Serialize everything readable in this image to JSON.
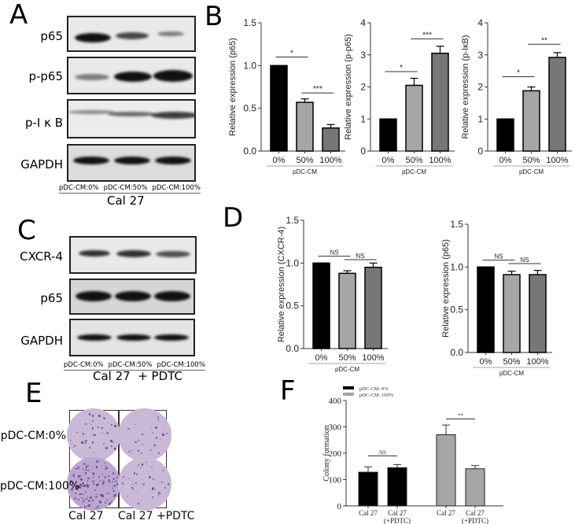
{
  "panels": {
    "A": {
      "letter": "A",
      "blots": [
        "p65",
        "p-p65",
        "p-I κ B",
        "GAPDH"
      ],
      "lanes": [
        "pDC-CM:0%",
        "pDC-CM:50%",
        "pDC-CM:100%"
      ],
      "cell_line": "Cal 27"
    },
    "B": {
      "letter": "B"
    },
    "C": {
      "letter": "C",
      "blots": [
        "CXCR-4",
        "p65",
        "GAPDH"
      ],
      "lanes": [
        "pDC-CM:0%",
        "pDC-CM:50%",
        "pDC-CM:100%"
      ],
      "cell_line": "Cal 27  + PDTC"
    },
    "D": {
      "letter": "D"
    },
    "E": {
      "letter": "E",
      "row_labels": [
        "pDC-CM:0%",
        "pDC-CM:100%"
      ],
      "col_labels": [
        "Cal 27",
        "Cal 27 +PDTC"
      ]
    },
    "F": {
      "letter": "F"
    }
  },
  "chart_data": [
    {
      "id": "B1",
      "type": "bar",
      "title": "",
      "categories": [
        "0%",
        "50%",
        "100%"
      ],
      "values": [
        1.0,
        0.57,
        0.27
      ],
      "errors": [
        0,
        0.04,
        0.04
      ],
      "xlabel": "pDC-CM",
      "ylabel": "Relative expression (p65)",
      "ylim": [
        0,
        1.5
      ],
      "yticks": [
        "0.0",
        "0.5",
        "1.0",
        "1.5"
      ],
      "ytick_values": [
        0,
        0.5,
        1.0,
        1.5
      ],
      "colors": [
        "#000000",
        "#a6a6a6",
        "#777777"
      ],
      "significance": [
        {
          "from": 0,
          "to": 1,
          "label": "*",
          "y": 1.1
        },
        {
          "from": 1,
          "to": 2,
          "label": "***",
          "y": 0.68
        }
      ],
      "serif": true
    },
    {
      "id": "B2",
      "type": "bar",
      "title": "",
      "categories": [
        "0%",
        "50%",
        "100%"
      ],
      "values": [
        1.0,
        2.05,
        3.05
      ],
      "errors": [
        0,
        0.22,
        0.22
      ],
      "xlabel": "pDC-CM",
      "ylabel": "Relative expression (p-p65)",
      "ylim": [
        0,
        4
      ],
      "yticks": [
        "0",
        "1",
        "2",
        "3",
        "4"
      ],
      "ytick_values": [
        0,
        1,
        2,
        3,
        4
      ],
      "colors": [
        "#000000",
        "#a6a6a6",
        "#777777"
      ],
      "significance": [
        {
          "from": 0,
          "to": 1,
          "label": "*",
          "y": 2.48
        },
        {
          "from": 1,
          "to": 2,
          "label": "***",
          "y": 3.5
        }
      ],
      "serif": false
    },
    {
      "id": "B3",
      "type": "bar",
      "title": "",
      "categories": [
        "0%",
        "50%",
        "100%"
      ],
      "values": [
        1.0,
        1.88,
        2.92
      ],
      "errors": [
        0,
        0.12,
        0.15
      ],
      "xlabel": "pDC-CM",
      "ylabel": "Relative expression (p-IκB)",
      "ylim": [
        0,
        4
      ],
      "yticks": [
        "0",
        "1",
        "2",
        "3",
        "4"
      ],
      "ytick_values": [
        0,
        1,
        2,
        3,
        4
      ],
      "colors": [
        "#000000",
        "#a6a6a6",
        "#777777"
      ],
      "significance": [
        {
          "from": 0,
          "to": 1,
          "label": "*",
          "y": 2.32
        },
        {
          "from": 1,
          "to": 2,
          "label": "**",
          "y": 3.33
        }
      ],
      "serif": false
    },
    {
      "id": "D1",
      "type": "bar",
      "title": "",
      "categories": [
        "0%",
        "50%",
        "100%"
      ],
      "values": [
        1.0,
        0.88,
        0.95
      ],
      "errors": [
        0,
        0.03,
        0.05
      ],
      "xlabel": "pDC-CM",
      "ylabel": "Relative expression (CXCR-4)",
      "ylim": [
        0,
        1.5
      ],
      "yticks": [
        "0.0",
        "0.5",
        "1.0",
        "1.5"
      ],
      "ytick_values": [
        0,
        0.5,
        1.0,
        1.5
      ],
      "colors": [
        "#000000",
        "#a6a6a6",
        "#777777"
      ],
      "significance": [
        {
          "from": 0,
          "to": 1,
          "label": "NS",
          "y": 1.08
        },
        {
          "from": 1,
          "to": 2,
          "label": "NS",
          "y": 1.04
        }
      ],
      "serif": false
    },
    {
      "id": "D2",
      "type": "bar",
      "title": "",
      "categories": [
        "0%",
        "50%",
        "100%"
      ],
      "values": [
        1.0,
        0.91,
        0.91
      ],
      "errors": [
        0,
        0.04,
        0.05
      ],
      "xlabel": "pDC-CM",
      "ylabel": "Relative expression (p65)",
      "ylim": [
        0,
        1.5
      ],
      "yticks": [
        "0.0",
        "0.5",
        "1.0",
        "1.5"
      ],
      "ytick_values": [
        0,
        0.5,
        1.0,
        1.5
      ],
      "colors": [
        "#000000",
        "#a6a6a6",
        "#777777"
      ],
      "significance": [
        {
          "from": 0,
          "to": 1,
          "label": "NS",
          "y": 1.08
        },
        {
          "from": 1,
          "to": 2,
          "label": "NS",
          "y": 1.04
        }
      ],
      "serif": false
    },
    {
      "id": "F",
      "type": "bar",
      "title": "",
      "categories": [
        "Cal 27",
        "Cal 27 (+PDTC)",
        "Cal 27",
        "Cal 27 (+PDTC)"
      ],
      "series": [
        {
          "name": "pDC-CM: 0%",
          "color": "#000000",
          "values": [
            128,
            145
          ],
          "errors": [
            20,
            12
          ]
        },
        {
          "name": "pDC-CM: 100%",
          "color": "#a6a6a6",
          "values": [
            270,
            141
          ],
          "errors": [
            37,
            12
          ]
        }
      ],
      "xlabel": "",
      "ylabel": "Colony formation",
      "ylim": [
        0,
        400
      ],
      "yticks": [
        "0",
        "100",
        "200",
        "300",
        "400"
      ],
      "ytick_values": [
        0,
        100,
        200,
        300,
        400
      ],
      "legend_position": "top-left",
      "significance": [
        {
          "group": 0,
          "label": "NS",
          "y": 190
        },
        {
          "group": 1,
          "label": "**",
          "y": 330
        }
      ]
    }
  ]
}
